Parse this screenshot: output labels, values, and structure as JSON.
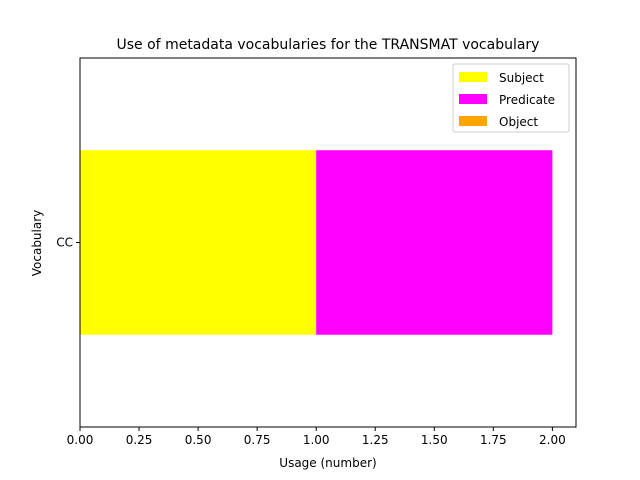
{
  "chart_data": {
    "type": "bar",
    "orientation": "horizontal",
    "stacked": true,
    "title": "Use of metadata vocabularies for the TRANSMAT vocabulary",
    "xlabel": "Usage (number)",
    "ylabel": "Vocabulary",
    "categories": [
      "CC"
    ],
    "xlim": [
      0,
      2.1
    ],
    "xticks": [
      "0.00",
      "0.25",
      "0.50",
      "0.75",
      "1.00",
      "1.25",
      "1.50",
      "1.75",
      "2.00"
    ],
    "grid": false,
    "legend_position": "top-right",
    "series": [
      {
        "name": "Subject",
        "values": [
          1
        ],
        "color": "#ffff00"
      },
      {
        "name": "Predicate",
        "values": [
          1
        ],
        "color": "#ff00ff"
      },
      {
        "name": "Object",
        "values": [
          0
        ],
        "color": "#ffa500"
      }
    ]
  }
}
